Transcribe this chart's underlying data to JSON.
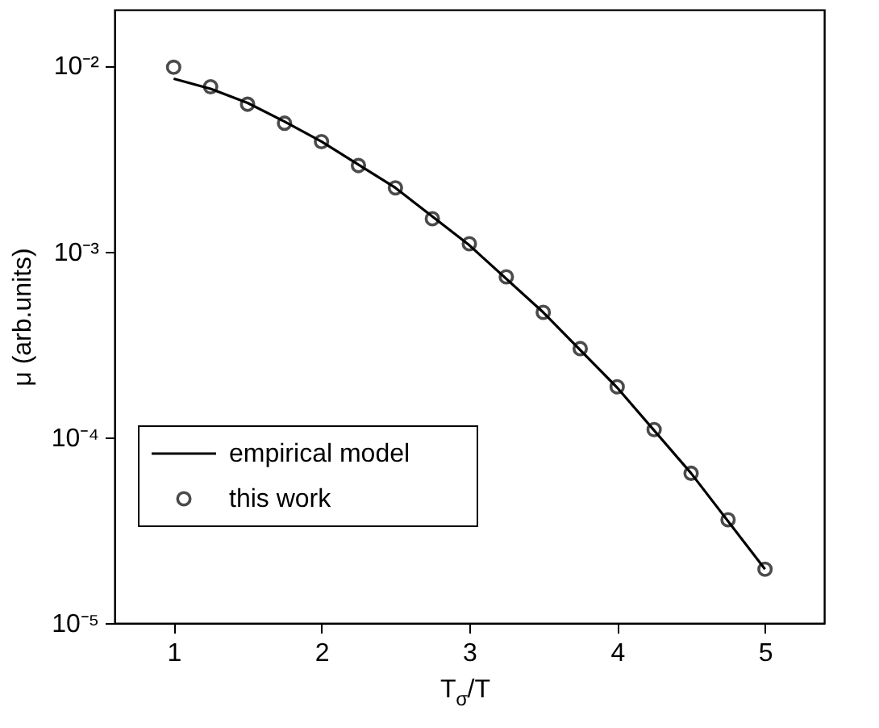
{
  "chart_data": {
    "type": "line",
    "xlabel": "T$_{σ}$/T",
    "ylabel": "μ (arb.units)",
    "series": [
      {
        "name": "empirical model",
        "color": "#000000",
        "line_style": "solid",
        "marker": "none",
        "x": [
          1,
          1.25,
          1.5,
          1.75,
          2,
          2.5,
          3,
          3.5,
          4,
          4.5,
          5
        ],
        "values": [
          0.0085,
          0.0075,
          0.0063,
          0.005,
          0.0039,
          0.0022,
          0.00108,
          0.00047,
          0.000185,
          6.4e-05,
          1.95e-05
        ]
      },
      {
        "name": "this work",
        "type": "scatter",
        "color": "#000000",
        "marker": "circle",
        "x": [
          1,
          1.25,
          1.5,
          1.75,
          2,
          2.25,
          2.5,
          2.75,
          3,
          3.25,
          3.5,
          3.75,
          4,
          4.25,
          4.5,
          4.75,
          5
        ],
        "values": [
          0.0098,
          0.0077,
          0.0062,
          0.0049,
          0.0039,
          0.0029,
          0.0022,
          0.0015,
          0.0011,
          0.00073,
          0.00047,
          0.0003,
          0.000187,
          0.00011,
          6.4e-05,
          3.6e-05,
          1.95e-05
        ]
      }
    ],
    "log": "y",
    "xlim": [
      0.6,
      5.4
    ],
    "ylim": [
      1e-05,
      0.02
    ],
    "xticks": [
      1,
      2,
      3,
      4,
      5
    ],
    "yticks": [
      {
        "value": 0.01,
        "label": "10⁻²"
      },
      {
        "value": 0.001,
        "label": "10⁻³"
      },
      {
        "value": 0.0001,
        "label": "10⁻⁴"
      },
      {
        "value": 1e-05,
        "label": "10⁻⁵"
      }
    ],
    "grid": false,
    "legend": "bottom left"
  }
}
